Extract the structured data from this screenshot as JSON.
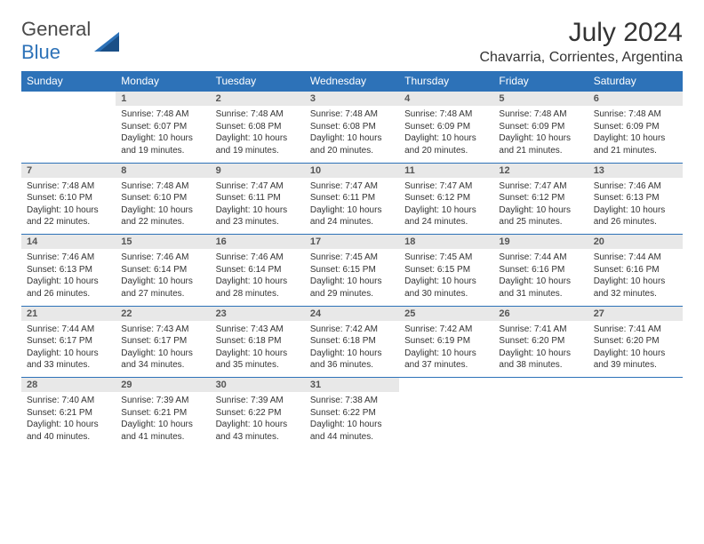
{
  "brand": {
    "name_a": "General",
    "name_b": "Blue"
  },
  "title": "July 2024",
  "location": "Chavarria, Corrientes, Argentina",
  "colors": {
    "header_bg": "#2d72b8",
    "header_text": "#ffffff",
    "daynum_bg": "#e8e8e8",
    "daynum_text": "#555555",
    "cell_text": "#333333",
    "row_border": "#2d72b8",
    "page_bg": "#ffffff"
  },
  "typography": {
    "title_fontsize": 30,
    "location_fontsize": 16,
    "header_fontsize": 12,
    "daynum_fontsize": 11,
    "cell_fontsize": 10,
    "font_family": "Arial"
  },
  "weekdays": [
    "Sunday",
    "Monday",
    "Tuesday",
    "Wednesday",
    "Thursday",
    "Friday",
    "Saturday"
  ],
  "weeks": [
    [
      null,
      {
        "n": "1",
        "l1": "Sunrise: 7:48 AM",
        "l2": "Sunset: 6:07 PM",
        "l3": "Daylight: 10 hours",
        "l4": "and 19 minutes."
      },
      {
        "n": "2",
        "l1": "Sunrise: 7:48 AM",
        "l2": "Sunset: 6:08 PM",
        "l3": "Daylight: 10 hours",
        "l4": "and 19 minutes."
      },
      {
        "n": "3",
        "l1": "Sunrise: 7:48 AM",
        "l2": "Sunset: 6:08 PM",
        "l3": "Daylight: 10 hours",
        "l4": "and 20 minutes."
      },
      {
        "n": "4",
        "l1": "Sunrise: 7:48 AM",
        "l2": "Sunset: 6:09 PM",
        "l3": "Daylight: 10 hours",
        "l4": "and 20 minutes."
      },
      {
        "n": "5",
        "l1": "Sunrise: 7:48 AM",
        "l2": "Sunset: 6:09 PM",
        "l3": "Daylight: 10 hours",
        "l4": "and 21 minutes."
      },
      {
        "n": "6",
        "l1": "Sunrise: 7:48 AM",
        "l2": "Sunset: 6:09 PM",
        "l3": "Daylight: 10 hours",
        "l4": "and 21 minutes."
      }
    ],
    [
      {
        "n": "7",
        "l1": "Sunrise: 7:48 AM",
        "l2": "Sunset: 6:10 PM",
        "l3": "Daylight: 10 hours",
        "l4": "and 22 minutes."
      },
      {
        "n": "8",
        "l1": "Sunrise: 7:48 AM",
        "l2": "Sunset: 6:10 PM",
        "l3": "Daylight: 10 hours",
        "l4": "and 22 minutes."
      },
      {
        "n": "9",
        "l1": "Sunrise: 7:47 AM",
        "l2": "Sunset: 6:11 PM",
        "l3": "Daylight: 10 hours",
        "l4": "and 23 minutes."
      },
      {
        "n": "10",
        "l1": "Sunrise: 7:47 AM",
        "l2": "Sunset: 6:11 PM",
        "l3": "Daylight: 10 hours",
        "l4": "and 24 minutes."
      },
      {
        "n": "11",
        "l1": "Sunrise: 7:47 AM",
        "l2": "Sunset: 6:12 PM",
        "l3": "Daylight: 10 hours",
        "l4": "and 24 minutes."
      },
      {
        "n": "12",
        "l1": "Sunrise: 7:47 AM",
        "l2": "Sunset: 6:12 PM",
        "l3": "Daylight: 10 hours",
        "l4": "and 25 minutes."
      },
      {
        "n": "13",
        "l1": "Sunrise: 7:46 AM",
        "l2": "Sunset: 6:13 PM",
        "l3": "Daylight: 10 hours",
        "l4": "and 26 minutes."
      }
    ],
    [
      {
        "n": "14",
        "l1": "Sunrise: 7:46 AM",
        "l2": "Sunset: 6:13 PM",
        "l3": "Daylight: 10 hours",
        "l4": "and 26 minutes."
      },
      {
        "n": "15",
        "l1": "Sunrise: 7:46 AM",
        "l2": "Sunset: 6:14 PM",
        "l3": "Daylight: 10 hours",
        "l4": "and 27 minutes."
      },
      {
        "n": "16",
        "l1": "Sunrise: 7:46 AM",
        "l2": "Sunset: 6:14 PM",
        "l3": "Daylight: 10 hours",
        "l4": "and 28 minutes."
      },
      {
        "n": "17",
        "l1": "Sunrise: 7:45 AM",
        "l2": "Sunset: 6:15 PM",
        "l3": "Daylight: 10 hours",
        "l4": "and 29 minutes."
      },
      {
        "n": "18",
        "l1": "Sunrise: 7:45 AM",
        "l2": "Sunset: 6:15 PM",
        "l3": "Daylight: 10 hours",
        "l4": "and 30 minutes."
      },
      {
        "n": "19",
        "l1": "Sunrise: 7:44 AM",
        "l2": "Sunset: 6:16 PM",
        "l3": "Daylight: 10 hours",
        "l4": "and 31 minutes."
      },
      {
        "n": "20",
        "l1": "Sunrise: 7:44 AM",
        "l2": "Sunset: 6:16 PM",
        "l3": "Daylight: 10 hours",
        "l4": "and 32 minutes."
      }
    ],
    [
      {
        "n": "21",
        "l1": "Sunrise: 7:44 AM",
        "l2": "Sunset: 6:17 PM",
        "l3": "Daylight: 10 hours",
        "l4": "and 33 minutes."
      },
      {
        "n": "22",
        "l1": "Sunrise: 7:43 AM",
        "l2": "Sunset: 6:17 PM",
        "l3": "Daylight: 10 hours",
        "l4": "and 34 minutes."
      },
      {
        "n": "23",
        "l1": "Sunrise: 7:43 AM",
        "l2": "Sunset: 6:18 PM",
        "l3": "Daylight: 10 hours",
        "l4": "and 35 minutes."
      },
      {
        "n": "24",
        "l1": "Sunrise: 7:42 AM",
        "l2": "Sunset: 6:18 PM",
        "l3": "Daylight: 10 hours",
        "l4": "and 36 minutes."
      },
      {
        "n": "25",
        "l1": "Sunrise: 7:42 AM",
        "l2": "Sunset: 6:19 PM",
        "l3": "Daylight: 10 hours",
        "l4": "and 37 minutes."
      },
      {
        "n": "26",
        "l1": "Sunrise: 7:41 AM",
        "l2": "Sunset: 6:20 PM",
        "l3": "Daylight: 10 hours",
        "l4": "and 38 minutes."
      },
      {
        "n": "27",
        "l1": "Sunrise: 7:41 AM",
        "l2": "Sunset: 6:20 PM",
        "l3": "Daylight: 10 hours",
        "l4": "and 39 minutes."
      }
    ],
    [
      {
        "n": "28",
        "l1": "Sunrise: 7:40 AM",
        "l2": "Sunset: 6:21 PM",
        "l3": "Daylight: 10 hours",
        "l4": "and 40 minutes."
      },
      {
        "n": "29",
        "l1": "Sunrise: 7:39 AM",
        "l2": "Sunset: 6:21 PM",
        "l3": "Daylight: 10 hours",
        "l4": "and 41 minutes."
      },
      {
        "n": "30",
        "l1": "Sunrise: 7:39 AM",
        "l2": "Sunset: 6:22 PM",
        "l3": "Daylight: 10 hours",
        "l4": "and 43 minutes."
      },
      {
        "n": "31",
        "l1": "Sunrise: 7:38 AM",
        "l2": "Sunset: 6:22 PM",
        "l3": "Daylight: 10 hours",
        "l4": "and 44 minutes."
      },
      null,
      null,
      null
    ]
  ]
}
